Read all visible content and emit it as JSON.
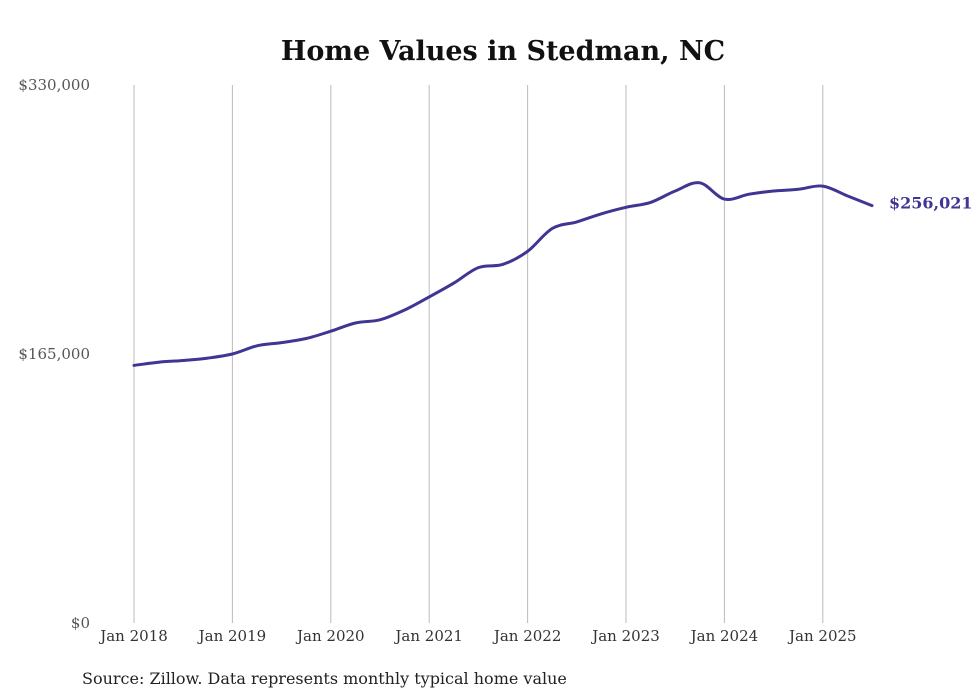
{
  "chart_data": {
    "type": "line",
    "title": "Home Values in Stedman, NC",
    "xlabel": "",
    "ylabel": "",
    "ylim": [
      0,
      330000
    ],
    "y_ticks": [
      "$0",
      "$165,000",
      "$330,000"
    ],
    "x_ticks": [
      "Jan 2018",
      "Jan 2019",
      "Jan 2020",
      "Jan 2021",
      "Jan 2022",
      "Jan 2023",
      "Jan 2024",
      "Jan 2025"
    ],
    "grid": "vertical",
    "line_color": "#3f3592",
    "end_label": "$256,021",
    "source": "Source: Zillow. Data represents monthly typical home value",
    "series": [
      {
        "x": [
          "2018-01",
          "2018-04",
          "2018-07",
          "2018-10",
          "2019-01",
          "2019-04",
          "2019-07",
          "2019-10",
          "2020-01",
          "2020-04",
          "2020-07",
          "2020-10",
          "2021-01",
          "2021-04",
          "2021-07",
          "2021-10",
          "2022-01",
          "2022-04",
          "2022-07",
          "2022-10",
          "2023-01",
          "2023-04",
          "2023-07",
          "2023-10",
          "2024-01",
          "2024-04",
          "2024-07",
          "2024-10",
          "2025-01",
          "2025-04",
          "2025-07"
        ],
        "values": [
          158000,
          160000,
          161000,
          162500,
          165000,
          170000,
          172000,
          174500,
          179000,
          184000,
          186000,
          192000,
          200000,
          208500,
          218000,
          220000,
          228000,
          242000,
          246000,
          251000,
          255000,
          258000,
          265000,
          270000,
          260000,
          263000,
          265000,
          266000,
          268000,
          262000,
          256021
        ]
      }
    ]
  }
}
